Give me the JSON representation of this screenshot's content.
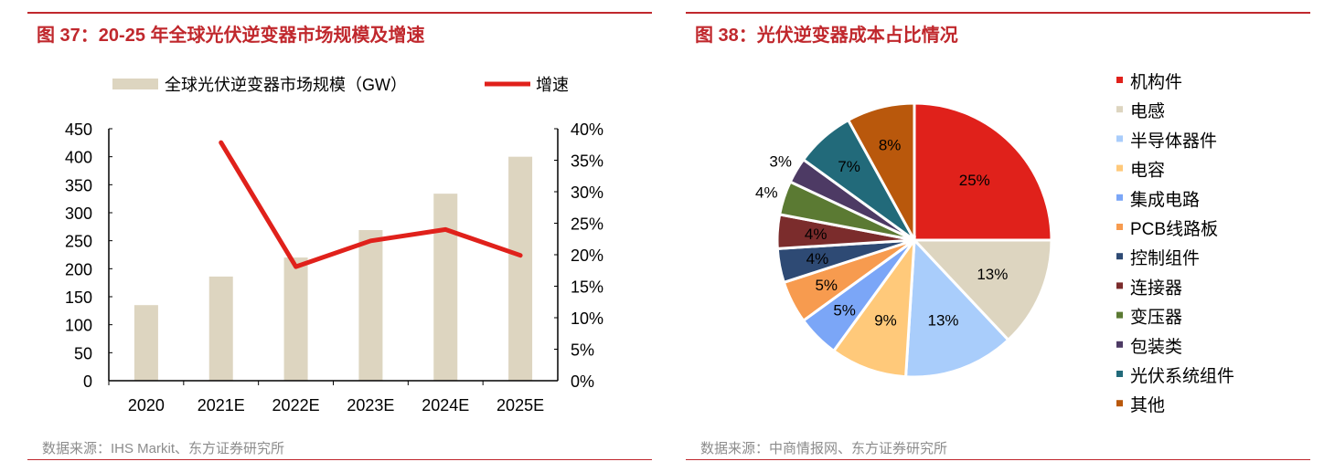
{
  "chart_data": [
    {
      "type": "bar+line",
      "title": "图 37：20-25 年全球光伏逆变器市场规模及增速",
      "categories": [
        "2020",
        "2021E",
        "2022E",
        "2023E",
        "2024E",
        "2025E"
      ],
      "series": [
        {
          "name": "全球光伏逆变器市场规模（GW）",
          "type": "bar",
          "axis": "left",
          "color": "#ddd5c0",
          "values": [
            135,
            186,
            220,
            269,
            334,
            400
          ]
        },
        {
          "name": "增速",
          "type": "line",
          "axis": "right",
          "color": "#e0211b",
          "values": [
            null,
            37.8,
            18.1,
            22.2,
            24.0,
            19.9
          ]
        }
      ],
      "ylim_left": [
        0,
        450
      ],
      "yticks_left": [
        "0",
        "50",
        "100",
        "150",
        "200",
        "250",
        "300",
        "350",
        "400",
        "450"
      ],
      "ylim_right": [
        0,
        40
      ],
      "yticks_right": [
        "0%",
        "5%",
        "10%",
        "15%",
        "20%",
        "25%",
        "30%",
        "35%",
        "40%"
      ],
      "legend": "top",
      "source": "数据来源：IHS Markit、东方证券研究所"
    },
    {
      "type": "pie",
      "title": "图 38：光伏逆变器成本占比情况",
      "labels": [
        "机构件",
        "电感",
        "半导体器件",
        "电容",
        "集成电路",
        "PCB线路板",
        "控制组件",
        "连接器",
        "变压器",
        "包装类",
        "光伏系统组件",
        "其他"
      ],
      "values": [
        25,
        13,
        13,
        9,
        5,
        5,
        4,
        4,
        4,
        3,
        7,
        8
      ],
      "value_labels": [
        "25%",
        "13%",
        "13%",
        "9%",
        "5%",
        "5%",
        "4%",
        "4%",
        "4%",
        "3%",
        "7%",
        "8%"
      ],
      "colors": [
        "#e0211b",
        "#ddd5c0",
        "#a9cdfb",
        "#ffc97a",
        "#7ba6f7",
        "#f79b4f",
        "#2e4a74",
        "#7b2c2c",
        "#5b7a33",
        "#4d3a64",
        "#226a7a",
        "#b9580c"
      ],
      "legend": "right",
      "source": "数据来源：中商情报网、东方证券研究所"
    }
  ]
}
